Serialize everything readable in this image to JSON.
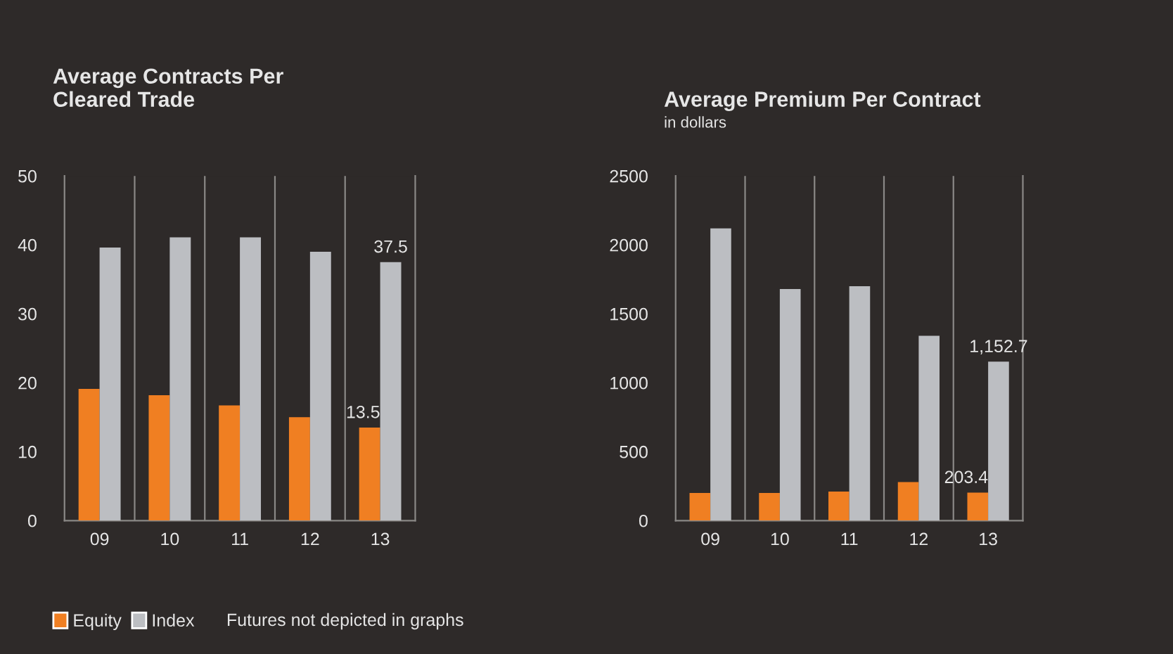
{
  "chart_data": [
    {
      "type": "bar",
      "title": "Average Contracts Per\nCleared Trade",
      "categories": [
        "09",
        "10",
        "11",
        "12",
        "13"
      ],
      "ylim": [
        0,
        50
      ],
      "yticks": [
        0,
        10,
        20,
        30,
        40,
        50
      ],
      "grid": "x",
      "legend": "bottom left",
      "annotations": [
        "Futures not depicted in graphs"
      ],
      "series": [
        {
          "name": "Equity",
          "color": "#f07f22",
          "values": [
            19.1,
            18.2,
            16.7,
            15.0,
            13.5
          ],
          "value_labels": [
            null,
            null,
            null,
            null,
            "13.5"
          ]
        },
        {
          "name": "Index",
          "color": "#bcbec2",
          "values": [
            39.6,
            41.1,
            41.1,
            39.0,
            37.5
          ],
          "value_labels": [
            null,
            null,
            null,
            null,
            "37.5"
          ]
        }
      ]
    },
    {
      "type": "bar",
      "title": "Average Premium Per Contract",
      "subtitle": "in dollars",
      "categories": [
        "09",
        "10",
        "11",
        "12",
        "13"
      ],
      "ylim": [
        0,
        2500
      ],
      "yticks": [
        0,
        500,
        1000,
        1500,
        2000,
        2500
      ],
      "grid": "x",
      "series": [
        {
          "color": "#f07f22",
          "values": [
            200,
            200,
            210,
            280,
            203.4
          ],
          "value_labels": [
            null,
            null,
            null,
            null,
            "203.4"
          ]
        },
        {
          "color": "#bcbec2",
          "values": [
            2120,
            1680,
            1700,
            1340,
            1152.7
          ],
          "value_labels": [
            null,
            null,
            null,
            null,
            "1,152.7"
          ]
        }
      ]
    }
  ]
}
